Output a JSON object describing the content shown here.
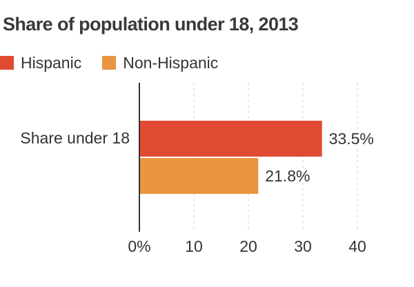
{
  "chart_data": {
    "type": "bar",
    "orientation": "horizontal",
    "title": "Share of population under 18, 2013",
    "xlabel": "",
    "ylabel": "",
    "categories": [
      "Share under 18"
    ],
    "series": [
      {
        "name": "Hispanic",
        "values": [
          33.5
        ],
        "labels": [
          "33.5%"
        ],
        "color": "#e04a33"
      },
      {
        "name": "Non-Hispanic",
        "values": [
          21.8
        ],
        "labels": [
          "21.8%"
        ],
        "color": "#e99542"
      }
    ],
    "xlim": [
      0,
      45
    ],
    "ticks": [
      {
        "value": 0,
        "label": "0%"
      },
      {
        "value": 10,
        "label": "10"
      },
      {
        "value": 20,
        "label": "20"
      },
      {
        "value": 30,
        "label": "30"
      },
      {
        "value": 40,
        "label": "40"
      }
    ],
    "grid": true,
    "legend_position": "top-left"
  }
}
